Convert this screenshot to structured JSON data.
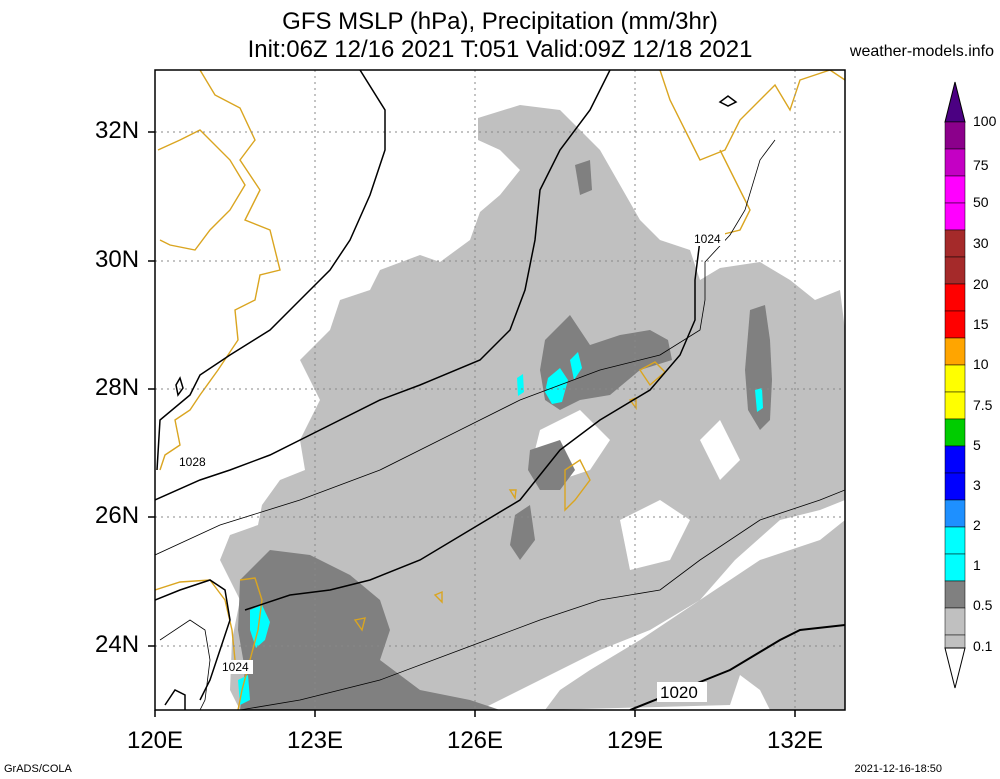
{
  "header": {
    "title_line1": "GFS MSLP (hPa), Precipitation (mm/3hr)",
    "title_line2": "Init:06Z 12/16 2021 T:051 Valid:09Z 12/18 2021",
    "site": "weather-models.info"
  },
  "axes": {
    "lat_labels": [
      "32N",
      "30N",
      "28N",
      "26N",
      "24N"
    ],
    "lon_labels": [
      "120E",
      "123E",
      "126E",
      "129E",
      "132E"
    ]
  },
  "isobar_labels": [
    "1028",
    "1024",
    "1024",
    "1020"
  ],
  "colorbar": {
    "labels": [
      "100",
      "75",
      "50",
      "30",
      "20",
      "15",
      "10",
      "7.5",
      "5",
      "3",
      "2",
      "1",
      "0.5",
      "0.1"
    ],
    "colors": [
      "#4b0082",
      "#8b008b",
      "#c400c4",
      "#ff00ff",
      "#a52a2a",
      "#ff0000",
      "#ffa500",
      "#ffff00",
      "#00cc00",
      "#0000ff",
      "#1e90ff",
      "#00ffff",
      "#808080",
      "#c0c0c0"
    ]
  },
  "footer": {
    "left": "GrADS/COLA",
    "right": "2021-12-16-18:50"
  }
}
